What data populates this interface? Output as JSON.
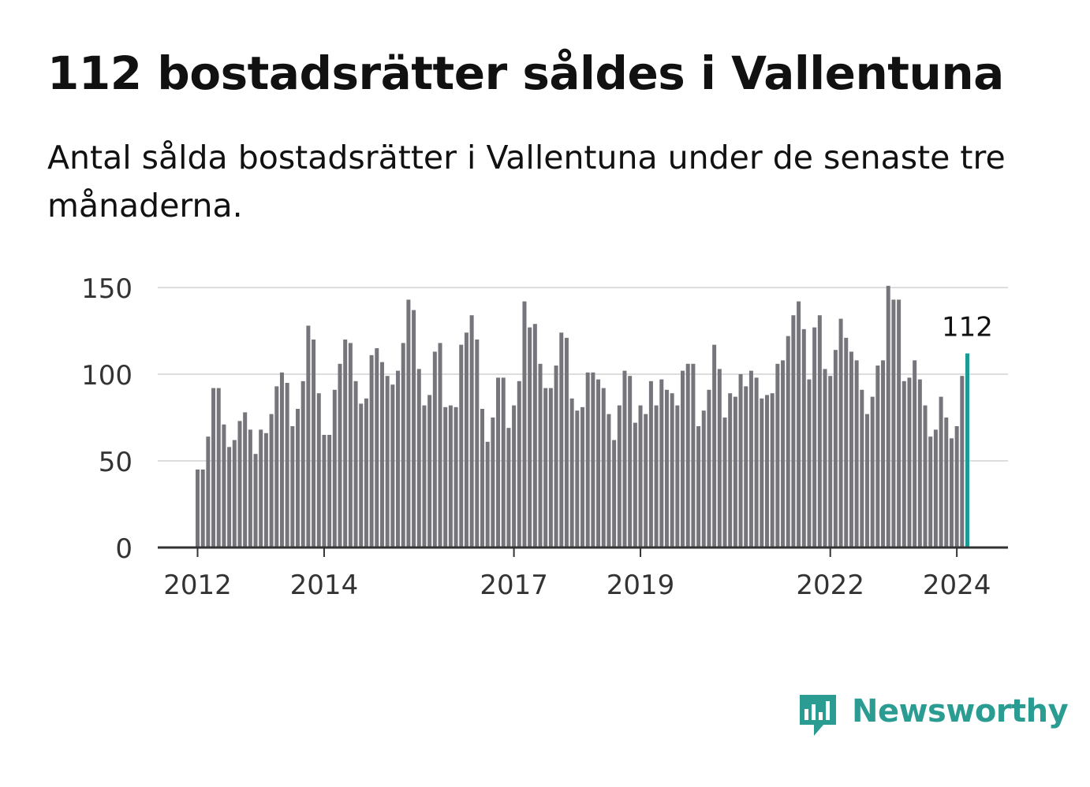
{
  "header": {
    "title": "112 bostadsrätter såldes i Vallentuna",
    "subtitle": "Antal sålda bostadsrätter i Vallentuna under de senaste tre månaderna."
  },
  "brand": {
    "name": "Newsworthy"
  },
  "colors": {
    "bar": "#75757b",
    "highlight": "#1a9c94",
    "grid": "#dddddd",
    "axis": "#333333",
    "brand": "#2b9c91"
  },
  "chart_data": {
    "type": "bar",
    "start": "2012-01",
    "frequency": "monthly",
    "ylim": [
      0,
      150
    ],
    "yticks": [
      0,
      50,
      100,
      150
    ],
    "xticks": [
      "2012",
      "2014",
      "2017",
      "2019",
      "2022",
      "2024"
    ],
    "highlight_label": "112",
    "values": [
      45,
      45,
      64,
      92,
      92,
      71,
      58,
      62,
      73,
      78,
      68,
      54,
      68,
      66,
      77,
      93,
      101,
      95,
      70,
      80,
      96,
      128,
      120,
      89,
      65,
      65,
      91,
      106,
      120,
      118,
      96,
      83,
      86,
      111,
      115,
      107,
      99,
      94,
      102,
      118,
      143,
      137,
      103,
      82,
      88,
      113,
      118,
      81,
      82,
      81,
      117,
      124,
      134,
      120,
      80,
      61,
      75,
      98,
      98,
      69,
      82,
      96,
      142,
      127,
      129,
      106,
      92,
      92,
      105,
      124,
      121,
      86,
      79,
      81,
      101,
      101,
      97,
      92,
      77,
      62,
      82,
      102,
      99,
      72,
      82,
      77,
      96,
      82,
      97,
      91,
      89,
      82,
      102,
      106,
      106,
      70,
      79,
      91,
      117,
      103,
      75,
      89,
      87,
      100,
      93,
      102,
      98,
      86,
      88,
      89,
      106,
      108,
      122,
      134,
      142,
      126,
      97,
      127,
      134,
      103,
      99,
      114,
      132,
      121,
      113,
      108,
      91,
      77,
      87,
      105,
      108,
      151,
      143,
      143,
      96,
      98,
      108,
      97,
      82,
      64,
      68,
      87,
      75,
      63,
      70,
      99,
      112
    ]
  }
}
